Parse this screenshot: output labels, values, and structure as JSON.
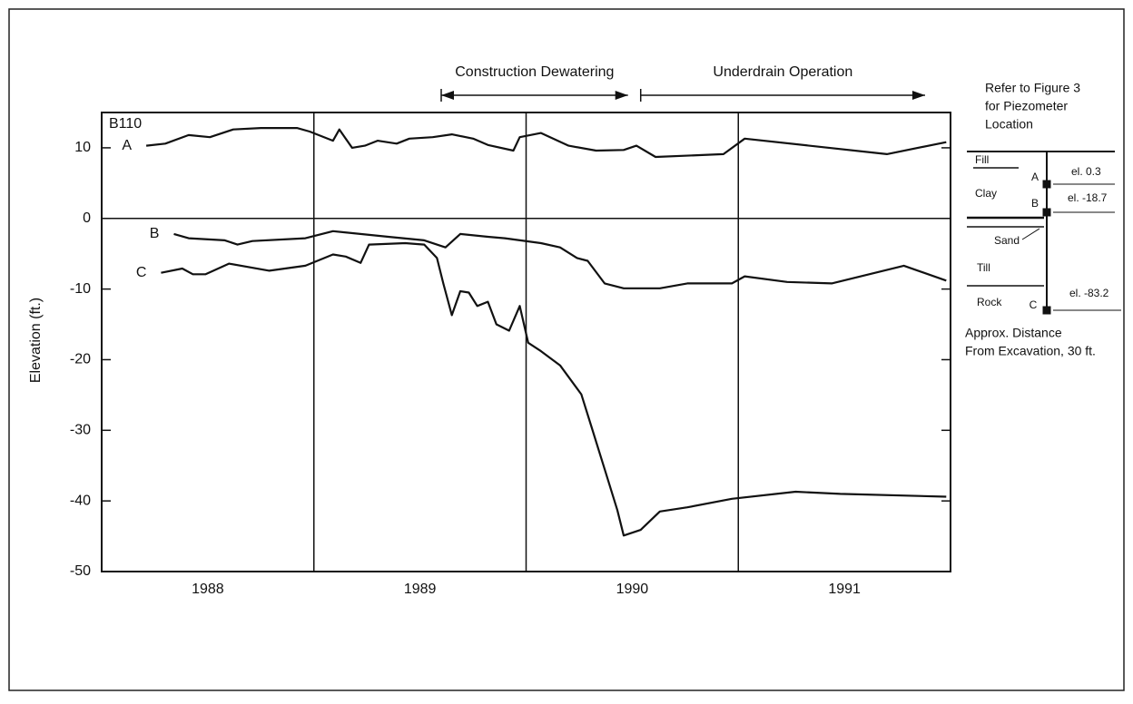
{
  "chart_data": {
    "type": "line",
    "y_label": "Elevation (ft.)",
    "panel_label": "B110",
    "xlim": [
      1987.5,
      1991.5
    ],
    "xticks": [
      1988,
      1989,
      1990,
      1991
    ],
    "xgrid": [
      1988.5,
      1989.5,
      1990.5
    ],
    "ylim": [
      -50,
      15
    ],
    "yticks": [
      10,
      0,
      -10,
      -20,
      -30,
      -40,
      -50
    ],
    "zero_line": true,
    "color": "#111111",
    "annotations": [
      {
        "text": "Construction Dewatering",
        "x": [
          1989.1,
          1989.98
        ]
      },
      {
        "text": "Underdrain Operation",
        "x": [
          1990.04,
          1991.38
        ]
      }
    ],
    "series": [
      {
        "name": "A",
        "color": "#111111",
        "x": [
          1987.71,
          1987.8,
          1987.91,
          1988.01,
          1988.12,
          1988.25,
          1988.42,
          1988.48,
          1988.59,
          1988.62,
          1988.68,
          1988.74,
          1988.8,
          1988.89,
          1988.95,
          1989.06,
          1989.15,
          1989.25,
          1989.32,
          1989.44,
          1989.47,
          1989.57,
          1989.7,
          1989.83,
          1989.96,
          1990.02,
          1990.11,
          1990.43,
          1990.53,
          1991.2,
          1991.48
        ],
        "values": [
          10.3,
          10.6,
          11.8,
          11.5,
          12.6,
          12.8,
          12.8,
          12.3,
          11.0,
          12.6,
          10.0,
          10.3,
          11.0,
          10.6,
          11.3,
          11.5,
          11.9,
          11.3,
          10.4,
          9.6,
          11.5,
          12.1,
          10.3,
          9.6,
          9.7,
          10.3,
          8.7,
          9.1,
          11.3,
          9.1,
          10.8
        ]
      },
      {
        "name": "B",
        "color": "#111111",
        "x": [
          1987.84,
          1987.91,
          1988.08,
          1988.14,
          1988.21,
          1988.46,
          1988.59,
          1988.85,
          1989.02,
          1989.12,
          1989.19,
          1989.32,
          1989.4,
          1989.57,
          1989.66,
          1989.74,
          1989.79,
          1989.87,
          1989.96,
          1990.13,
          1990.26,
          1990.47,
          1990.53,
          1990.73,
          1990.94,
          1991.28,
          1991.48
        ],
        "values": [
          -2.2,
          -2.8,
          -3.1,
          -3.7,
          -3.2,
          -2.8,
          -1.8,
          -2.6,
          -3.1,
          -4.1,
          -2.2,
          -2.6,
          -2.8,
          -3.5,
          -4.1,
          -5.6,
          -6.0,
          -9.2,
          -9.9,
          -9.9,
          -9.2,
          -9.2,
          -8.2,
          -9.0,
          -9.2,
          -6.7,
          -8.8
        ]
      },
      {
        "name": "C",
        "color": "#111111",
        "x": [
          1987.78,
          1987.88,
          1987.93,
          1987.99,
          1988.1,
          1988.29,
          1988.46,
          1988.59,
          1988.65,
          1988.72,
          1988.76,
          1988.93,
          1989.02,
          1989.08,
          1989.11,
          1989.15,
          1989.19,
          1989.23,
          1989.27,
          1989.32,
          1989.36,
          1989.42,
          1989.47,
          1989.51,
          1989.57,
          1989.66,
          1989.76,
          1989.81,
          1989.87,
          1989.93,
          1989.96,
          1990.04,
          1990.13,
          1990.26,
          1990.47,
          1990.77,
          1990.98,
          1991.48
        ],
        "values": [
          -7.7,
          -7.1,
          -7.9,
          -7.9,
          -6.4,
          -7.4,
          -6.7,
          -5.1,
          -5.4,
          -6.3,
          -3.7,
          -3.5,
          -3.7,
          -5.6,
          -9.2,
          -13.7,
          -10.3,
          -10.5,
          -12.4,
          -11.8,
          -15.0,
          -15.9,
          -12.4,
          -17.6,
          -18.8,
          -20.8,
          -24.9,
          -29.7,
          -35.5,
          -41.3,
          -44.9,
          -44.1,
          -41.5,
          -40.9,
          -39.7,
          -38.7,
          -39.0,
          -39.4
        ]
      }
    ],
    "profile": {
      "note": [
        "Refer to Figure 3",
        "for Piezometer",
        "Location"
      ],
      "layers": [
        "Fill",
        "Clay",
        "Sand",
        "Till",
        "Rock"
      ],
      "piezometers": [
        {
          "name": "A",
          "elevation_label": "el. 0.3"
        },
        {
          "name": "B",
          "elevation_label": "el. -18.7"
        },
        {
          "name": "C",
          "elevation_label": "el. -83.2"
        }
      ],
      "distance_note": [
        "Approx. Distance",
        "From Excavation, 30 ft."
      ]
    }
  }
}
